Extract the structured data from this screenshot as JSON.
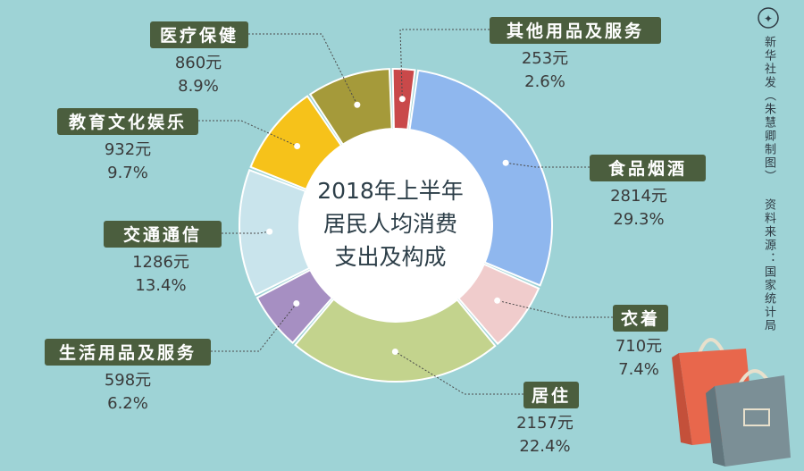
{
  "chart_data": {
    "type": "donut",
    "title_lines": [
      "2018年上半年",
      "居民人均消费",
      "支出及构成"
    ],
    "slices": [
      {
        "name": "其他用品及服务",
        "amount": "253元",
        "percent": "2.6%",
        "value": 2.6,
        "color": "#c9494a"
      },
      {
        "name": "食品烟酒",
        "amount": "2814元",
        "percent": "29.3%",
        "value": 29.3,
        "color": "#8fb7ee"
      },
      {
        "name": "衣着",
        "amount": "710元",
        "percent": "7.4%",
        "value": 7.4,
        "color": "#f0cccc"
      },
      {
        "name": "居住",
        "amount": "2157元",
        "percent": "22.4%",
        "value": 22.4,
        "color": "#c3d38d"
      },
      {
        "name": "生活用品及服务",
        "amount": "598元",
        "percent": "6.2%",
        "value": 6.2,
        "color": "#a68fc2"
      },
      {
        "name": "交通通信",
        "amount": "1286元",
        "percent": "13.4%",
        "value": 13.4,
        "color": "#c9e4ec"
      },
      {
        "name": "教育文化娱乐",
        "amount": "932元",
        "percent": "9.7%",
        "value": 9.7,
        "color": "#f6c21a"
      },
      {
        "name": "医疗保健",
        "amount": "860元",
        "percent": "8.9%",
        "value": 8.9,
        "color": "#a59a3a"
      }
    ]
  },
  "credits": {
    "agency": "新华社发（朱慧卿制图）",
    "source": "资料来源：国家统计局"
  },
  "colors": {
    "background": "#9ed3d6",
    "label_box": "#4b5e3e",
    "leader_line": "#4a4a4a"
  }
}
